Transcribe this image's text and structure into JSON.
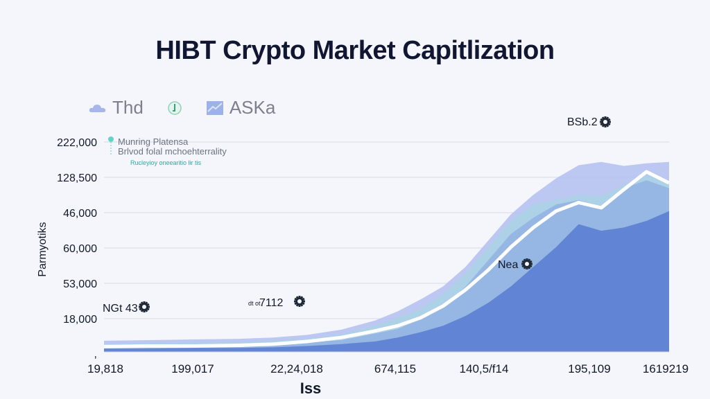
{
  "colors": {
    "background": "#f5f6fb",
    "title": "#111633",
    "series_back": "#b3bff0",
    "series_mid_light": "#a9d3e3",
    "series_mid": "#92b3e2",
    "series_front": "#5b7fd2",
    "line": "#ffffff",
    "axis": "#d8dbe6"
  },
  "chart_data": {
    "type": "area",
    "title": "HIBT Crypto Market Capitlization",
    "xlabel": "Iss",
    "ylabel": "Parmyotiks",
    "legend": {
      "placement": "top-left",
      "entries": [
        {
          "label": "Thd",
          "icon": "cloud-icon"
        },
        {
          "label": "",
          "icon": "leaf-icon"
        },
        {
          "label": "ASKa",
          "icon": "chart-tile-icon"
        }
      ]
    },
    "ytick_labels": [
      "222,000",
      "128,500",
      "46,000",
      "60,000",
      "53,000",
      "18,000",
      ","
    ],
    "xtick_labels": [
      "19,818",
      "199,017",
      "22,24,018",
      "674,115",
      "140,5/f14",
      "195,109",
      "1619219"
    ],
    "grid": true,
    "x": [
      0,
      0.08,
      0.16,
      0.24,
      0.3,
      0.36,
      0.42,
      0.48,
      0.52,
      0.56,
      0.6,
      0.64,
      0.68,
      0.72,
      0.76,
      0.8,
      0.84,
      0.88,
      0.92,
      0.96,
      1.0
    ],
    "series": [
      {
        "values": [
          17,
          18,
          19,
          20,
          22,
          26,
          34,
          48,
          62,
          80,
          100,
          130,
          170,
          210,
          240,
          265,
          285,
          290,
          284,
          288,
          290
        ]
      },
      {
        "values": [
          12,
          13,
          14,
          15,
          17,
          20,
          27,
          40,
          52,
          66,
          88,
          120,
          160,
          200,
          225,
          232,
          240,
          238,
          255,
          270,
          262
        ]
      },
      {
        "values": [
          10,
          11,
          11,
          12,
          13,
          14,
          18,
          28,
          35,
          50,
          70,
          100,
          140,
          180,
          205,
          225,
          232,
          222,
          250,
          262,
          250
        ]
      },
      {
        "values": [
          5,
          5,
          6,
          6,
          7,
          9,
          12,
          16,
          22,
          30,
          40,
          55,
          75,
          100,
          130,
          160,
          195,
          185,
          190,
          200,
          215
        ]
      }
    ],
    "line_series": {
      "values": [
        8,
        9,
        9,
        10,
        12,
        16,
        22,
        32,
        40,
        52,
        70,
        95,
        125,
        160,
        190,
        215,
        228,
        220,
        248,
        275,
        258
      ]
    },
    "annotations": [
      {
        "text": "NGt 43",
        "x": 0.04,
        "y": 40,
        "icon": "asterisk-icon"
      },
      {
        "text": "7112",
        "prefix": "dt ot",
        "x": 0.34,
        "y": 45,
        "icon": "asterisk-icon"
      },
      {
        "text": "Nea",
        "x": 0.73,
        "y": 106,
        "icon": "asterisk-icon"
      },
      {
        "text": "BSb.2",
        "x": 0.89,
        "y": 320,
        "icon": "asterisk-icon"
      }
    ],
    "notes": [
      "Munring Platensa",
      "Brlvod folal mchoehterrality",
      "Rucleyioy oneearitio lir tis"
    ]
  }
}
